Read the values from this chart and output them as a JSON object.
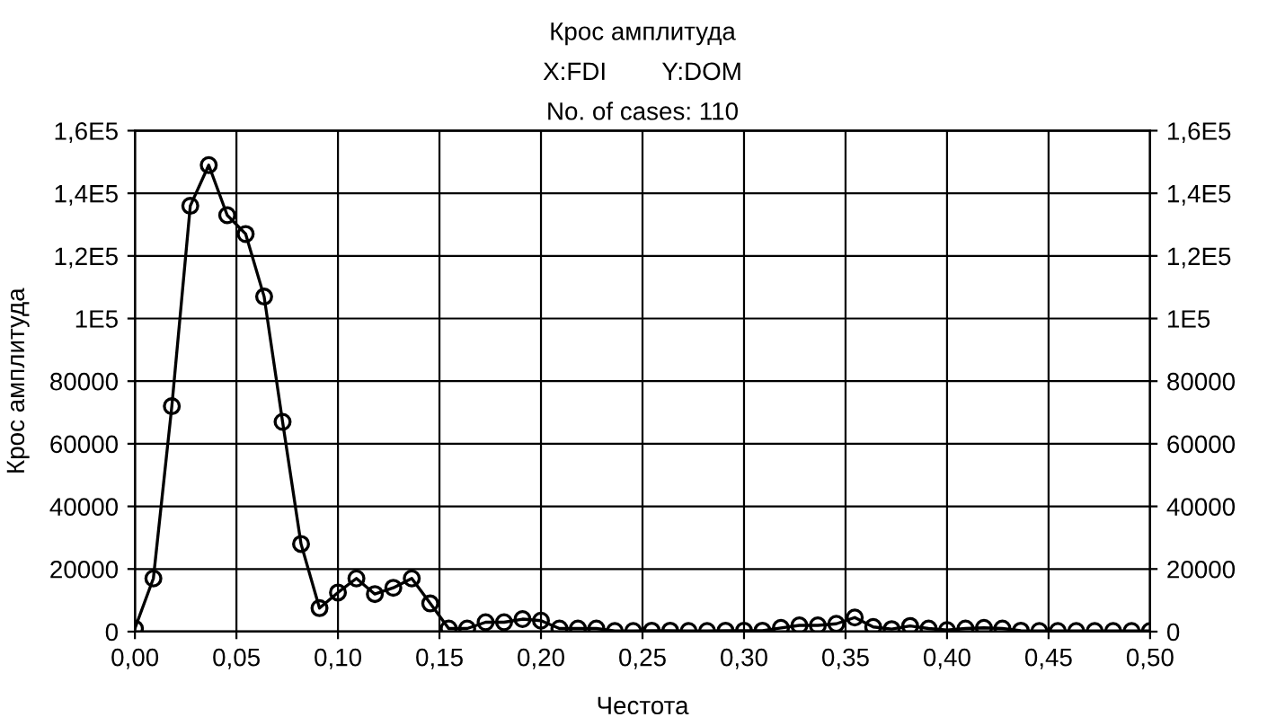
{
  "chart_data": {
    "type": "line",
    "title": "Крос амплитуда",
    "subtitle": "X:FDI        Y:DOM",
    "annotations": [
      "No. of cases: 110"
    ],
    "xlabel": "Честота",
    "ylabel": "Крос амплитуда",
    "x": [
      0,
      0.00909,
      0.01818,
      0.02727,
      0.03636,
      0.04545,
      0.05455,
      0.06364,
      0.07273,
      0.08182,
      0.09091,
      0.1,
      0.10909,
      0.11818,
      0.12727,
      0.13636,
      0.14545,
      0.15455,
      0.16364,
      0.17273,
      0.18182,
      0.19091,
      0.2,
      0.20909,
      0.21818,
      0.22727,
      0.23636,
      0.24545,
      0.25455,
      0.26364,
      0.27273,
      0.28182,
      0.29091,
      0.3,
      0.30909,
      0.31818,
      0.32727,
      0.33636,
      0.34545,
      0.35455,
      0.36364,
      0.37273,
      0.38182,
      0.39091,
      0.4,
      0.40909,
      0.41818,
      0.42727,
      0.43636,
      0.44545,
      0.45455,
      0.46364,
      0.47273,
      0.48182,
      0.49091,
      0.5
    ],
    "series": [
      {
        "color": "#000000",
        "values": [
          1000,
          17000,
          72000,
          136000,
          149000,
          133000,
          127000,
          107000,
          67000,
          28000,
          7500,
          12500,
          17000,
          12000,
          14000,
          17000,
          9000,
          1000,
          1000,
          3000,
          3000,
          4000,
          3500,
          1000,
          1000,
          1000,
          200,
          200,
          300,
          300,
          200,
          200,
          300,
          300,
          300,
          1200,
          2000,
          2000,
          2500,
          4500,
          1500,
          800,
          1800,
          1000,
          500,
          1000,
          1200,
          1000,
          300,
          200,
          200,
          200,
          200,
          200,
          200,
          200
        ]
      }
    ],
    "marker": "circle",
    "line_style": "solid",
    "grid": true,
    "legend": false,
    "xlim": [
      0,
      0.5
    ],
    "xticks": [
      {
        "value": 0,
        "label": "0,00"
      },
      {
        "value": 0.05,
        "label": "0,05"
      },
      {
        "value": 0.1,
        "label": "0,10"
      },
      {
        "value": 0.15,
        "label": "0,15"
      },
      {
        "value": 0.2,
        "label": "0,20"
      },
      {
        "value": 0.25,
        "label": "0,25"
      },
      {
        "value": 0.3,
        "label": "0,30"
      },
      {
        "value": 0.35,
        "label": "0,35"
      },
      {
        "value": 0.4,
        "label": "0,40"
      },
      {
        "value": 0.45,
        "label": "0,45"
      },
      {
        "value": 0.5,
        "label": "0,50"
      }
    ],
    "ylim": [
      0,
      160000
    ],
    "yticks": [
      0,
      20000,
      40000,
      60000,
      80000,
      {
        "value": 100000,
        "label": "1E5"
      },
      {
        "value": 120000,
        "label": "1,2E5"
      },
      {
        "value": 140000,
        "label": "1,4E5"
      },
      {
        "value": 160000,
        "label": "1,6E5"
      }
    ],
    "y2lim": [
      0,
      160000
    ],
    "y2ticks": [
      0,
      20000,
      40000,
      60000,
      80000,
      {
        "value": 100000,
        "label": "1E5"
      },
      {
        "value": 120000,
        "label": "1,2E5"
      },
      {
        "value": 140000,
        "label": "1,4E5"
      },
      {
        "value": 160000,
        "label": "1,6E5"
      }
    ]
  }
}
